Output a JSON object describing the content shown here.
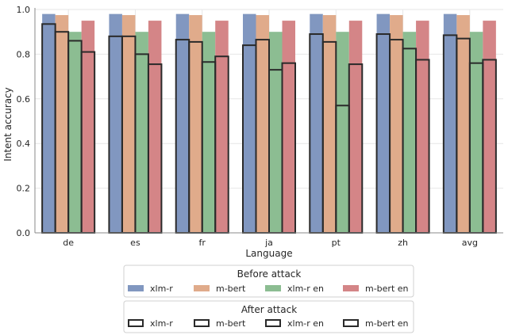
{
  "chart_data": {
    "type": "bar",
    "title": "",
    "xlabel": "Language",
    "ylabel": "Intent accuracy",
    "ylim": [
      0,
      1.0
    ],
    "yticks": [
      "0.0",
      "0.2",
      "0.4",
      "0.6",
      "0.8",
      "1.0"
    ],
    "grid": true,
    "categories": [
      "de",
      "es",
      "fr",
      "ja",
      "pt",
      "zh",
      "avg"
    ],
    "before_attack": {
      "legend_title": "Before attack",
      "series": [
        {
          "name": "xlm-r",
          "color": "#8197c0",
          "values": [
            0.98,
            0.98,
            0.98,
            0.98,
            0.98,
            0.98,
            0.98
          ]
        },
        {
          "name": "m-bert",
          "color": "#e0ab8b",
          "values": [
            0.975,
            0.975,
            0.975,
            0.975,
            0.975,
            0.975,
            0.975
          ]
        },
        {
          "name": "xlm-r en",
          "color": "#8cbd92",
          "values": [
            0.9,
            0.9,
            0.9,
            0.9,
            0.9,
            0.9,
            0.9
          ]
        },
        {
          "name": "m-bert en",
          "color": "#d48587",
          "values": [
            0.95,
            0.95,
            0.95,
            0.95,
            0.95,
            0.95,
            0.95
          ]
        }
      ]
    },
    "after_attack": {
      "legend_title": "After attack",
      "edge_color": "#2a2a2a",
      "series": [
        {
          "name": "xlm-r",
          "values": [
            0.935,
            0.88,
            0.865,
            0.84,
            0.89,
            0.89,
            0.885
          ]
        },
        {
          "name": "m-bert",
          "values": [
            0.9,
            0.88,
            0.855,
            0.865,
            0.855,
            0.865,
            0.87
          ]
        },
        {
          "name": "xlm-r en",
          "values": [
            0.86,
            0.8,
            0.765,
            0.73,
            0.57,
            0.825,
            0.76
          ]
        },
        {
          "name": "m-bert en",
          "values": [
            0.81,
            0.755,
            0.79,
            0.76,
            0.755,
            0.775,
            0.775
          ]
        }
      ]
    }
  }
}
